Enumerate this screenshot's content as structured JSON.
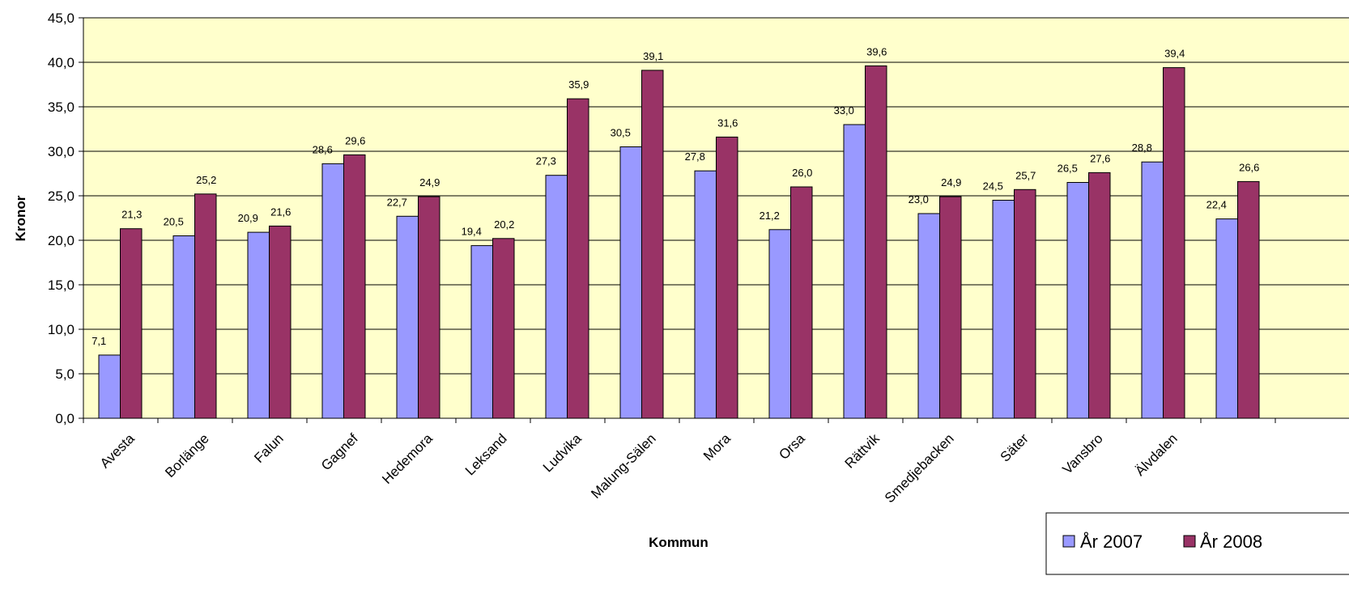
{
  "chart_data": {
    "type": "bar",
    "xlabel": "Kommun",
    "ylabel": "Kronor",
    "ylim": [
      0,
      45
    ],
    "ytick_labels": [
      "0,0",
      "5,0",
      "10,0",
      "15,0",
      "20,0",
      "25,0",
      "30,0",
      "35,0",
      "40,0",
      "45,0"
    ],
    "grid": true,
    "legend_position": "bottom-right",
    "categories": [
      "Avesta",
      "Borlänge",
      "Falun",
      "Gagnef",
      "Hedemora",
      "Leksand",
      "Ludvika",
      "Malung-Sälen",
      "Mora",
      "Orsa",
      "Rättvik",
      "Smedjebacken",
      "Säter",
      "Vansbro",
      "Älvdalen",
      ""
    ],
    "series": [
      {
        "name": "År 2007",
        "color": "#9999FF",
        "values": [
          7.1,
          20.5,
          20.9,
          28.6,
          22.7,
          19.4,
          27.3,
          30.5,
          27.8,
          21.2,
          33.0,
          23.0,
          24.5,
          26.5,
          28.8,
          22.4
        ],
        "labels": [
          "7,1",
          "20,5",
          "20,9",
          "28,6",
          "22,7",
          "19,4",
          "27,3",
          "30,5",
          "27,8",
          "21,2",
          "33,0",
          "23,0",
          "24,5",
          "26,5",
          "28,8",
          "22,4"
        ]
      },
      {
        "name": "År 2008",
        "color": "#993366",
        "values": [
          21.3,
          25.2,
          21.6,
          29.6,
          24.9,
          20.2,
          35.9,
          39.1,
          31.6,
          26.0,
          39.6,
          24.9,
          25.7,
          27.6,
          39.4,
          26.6
        ],
        "labels": [
          "21,3",
          "25,2",
          "21,6",
          "29,6",
          "24,9",
          "20,2",
          "35,9",
          "39,1",
          "31,6",
          "26,0",
          "39,6",
          "24,9",
          "25,7",
          "27,6",
          "39,4",
          "26,6"
        ]
      }
    ],
    "plot_background": "#FFFFCC"
  }
}
